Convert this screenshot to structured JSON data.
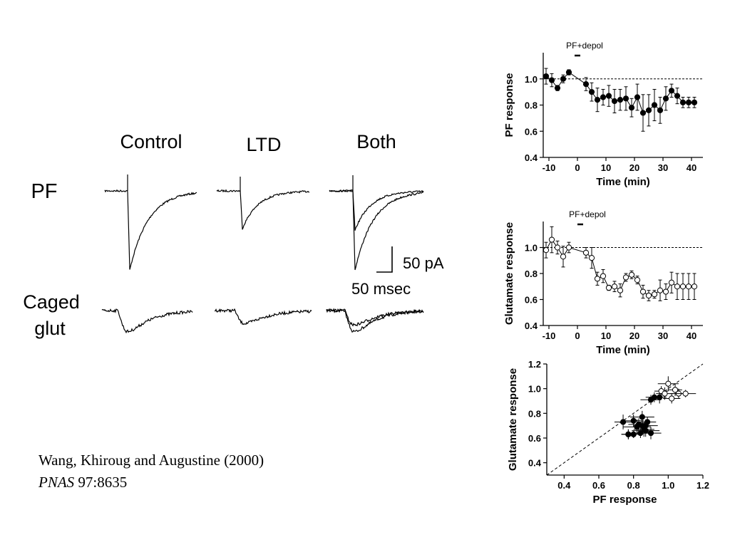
{
  "traces": {
    "columns": [
      "Control",
      "LTD",
      "Both"
    ],
    "rows": [
      "PF",
      "Caged",
      "glut"
    ],
    "scalebar": {
      "amplitude": "50 pA",
      "time": "50 msec"
    }
  },
  "citation": {
    "authors": "Wang, Khiroug and Augustine (2000)",
    "journal": "PNAS",
    "ref": " 97:8635"
  },
  "chart_data": [
    {
      "type": "line",
      "marker": "filled-circle",
      "xlabel": "Time  (min)",
      "ylabel": "PF response",
      "xlim": [
        -12,
        44
      ],
      "ylim": [
        0.4,
        1.2
      ],
      "xticks": [
        -10,
        0,
        10,
        20,
        30,
        40
      ],
      "xtick_labels": [
        "-10",
        "0",
        "10",
        "20",
        "30",
        "40"
      ],
      "yticks": [
        0.4,
        0.6,
        0.8,
        1.0
      ],
      "ytick_labels": [
        "0.4",
        "0.6",
        "0.8",
        "1.0"
      ],
      "reference_line": 1.0,
      "annotation": {
        "text": "PF+depol",
        "bar": [
          -0.5,
          0.5
        ]
      },
      "series": [
        {
          "x": [
            -11,
            -9,
            -7,
            -5,
            -3,
            3,
            5,
            7,
            9,
            11,
            13,
            15,
            17,
            19,
            21,
            23,
            25,
            27,
            29,
            31,
            33,
            35,
            37,
            39,
            41
          ],
          "y": [
            1.02,
            0.99,
            0.93,
            1.0,
            1.05,
            0.96,
            0.9,
            0.84,
            0.86,
            0.87,
            0.83,
            0.84,
            0.85,
            0.78,
            0.86,
            0.74,
            0.76,
            0.8,
            0.76,
            0.85,
            0.91,
            0.87,
            0.82,
            0.82,
            0.82
          ],
          "err": [
            0.06,
            0.05,
            0.02,
            0.03,
            0.02,
            0.05,
            0.07,
            0.09,
            0.06,
            0.08,
            0.09,
            0.08,
            0.09,
            0.07,
            0.1,
            0.14,
            0.12,
            0.12,
            0.1,
            0.09,
            0.05,
            0.06,
            0.04,
            0.04,
            0.04
          ]
        }
      ]
    },
    {
      "type": "line",
      "marker": "open-circle",
      "xlabel": "Time  (min)",
      "ylabel": "Glutamate response",
      "xlim": [
        -12,
        44
      ],
      "ylim": [
        0.4,
        1.2
      ],
      "xticks": [
        -10,
        0,
        10,
        20,
        30,
        40
      ],
      "xtick_labels": [
        "-10",
        "0",
        "10",
        "20",
        "30",
        "40"
      ],
      "yticks": [
        0.4,
        0.6,
        0.8,
        1.0
      ],
      "ytick_labels": [
        "0.4",
        "0.6",
        "0.8",
        "1.0"
      ],
      "reference_line": 1.0,
      "annotation": {
        "text": "PF+depol",
        "bar": [
          0.5,
          1.5
        ]
      },
      "series": [
        {
          "x": [
            -11,
            -9,
            -7,
            -5,
            -3,
            3,
            5,
            7,
            9,
            11,
            13,
            15,
            17,
            19,
            21,
            23,
            25,
            27,
            29,
            31,
            33,
            35,
            37,
            39,
            41
          ],
          "y": [
            0.98,
            1.06,
            1.0,
            0.93,
            1.0,
            0.96,
            0.92,
            0.76,
            0.78,
            0.69,
            0.7,
            0.67,
            0.77,
            0.79,
            0.75,
            0.66,
            0.63,
            0.64,
            0.67,
            0.66,
            0.73,
            0.7,
            0.7,
            0.7,
            0.7
          ],
          "err": [
            0.06,
            0.1,
            0.05,
            0.08,
            0.04,
            0.04,
            0.08,
            0.05,
            0.05,
            0.02,
            0.04,
            0.05,
            0.03,
            0.03,
            0.03,
            0.05,
            0.04,
            0.03,
            0.08,
            0.06,
            0.08,
            0.1,
            0.1,
            0.1,
            0.1
          ]
        }
      ]
    },
    {
      "type": "scatter",
      "xlabel": "PF response",
      "ylabel": "Glutamate response",
      "xlim": [
        0.3,
        1.2
      ],
      "ylim": [
        0.3,
        1.2
      ],
      "xticks": [
        0.4,
        0.6,
        0.8,
        1.0,
        1.2
      ],
      "xtick_labels": [
        "0.4",
        "0.6",
        "0.8",
        "1.0",
        "1.2"
      ],
      "yticks": [
        0.4,
        0.6,
        0.8,
        1.0,
        1.2
      ],
      "ytick_labels": [
        "0.4",
        "0.6",
        "0.8",
        "1.0",
        "1.2"
      ],
      "identity_line": true,
      "series": [
        {
          "marker": "filled-circle",
          "x": [
            0.74,
            0.77,
            0.8,
            0.82,
            0.84,
            0.85,
            0.86,
            0.87,
            0.88,
            0.9,
            0.92,
            0.95,
            0.77,
            0.8,
            0.83,
            0.85,
            0.87,
            0.9
          ],
          "y": [
            0.73,
            0.63,
            0.74,
            0.69,
            0.64,
            0.77,
            0.67,
            0.66,
            0.73,
            0.64,
            0.93,
            0.93,
            0.63,
            0.63,
            0.71,
            0.7,
            0.7,
            0.91
          ],
          "xerr": [
            0.05,
            0.04,
            0.06,
            0.08,
            0.05,
            0.07,
            0.06,
            0.08,
            0.05,
            0.06,
            0.05,
            0.04,
            0.04,
            0.05,
            0.06,
            0.05,
            0.07,
            0.06
          ],
          "yerr": [
            0.06,
            0.04,
            0.05,
            0.06,
            0.04,
            0.05,
            0.06,
            0.05,
            0.04,
            0.05,
            0.04,
            0.05,
            0.04,
            0.03,
            0.05,
            0.04,
            0.05,
            0.04
          ]
        },
        {
          "marker": "open-circle",
          "x": [
            0.96,
            0.98,
            1.0,
            1.02,
            1.04,
            1.06,
            1.1
          ],
          "y": [
            0.98,
            0.96,
            1.04,
            0.92,
            0.99,
            0.96,
            0.96
          ],
          "xerr": [
            0.04,
            0.05,
            0.06,
            0.05,
            0.04,
            0.05,
            0.06
          ],
          "yerr": [
            0.04,
            0.05,
            0.06,
            0.04,
            0.05,
            0.04,
            0.03
          ]
        }
      ]
    }
  ]
}
